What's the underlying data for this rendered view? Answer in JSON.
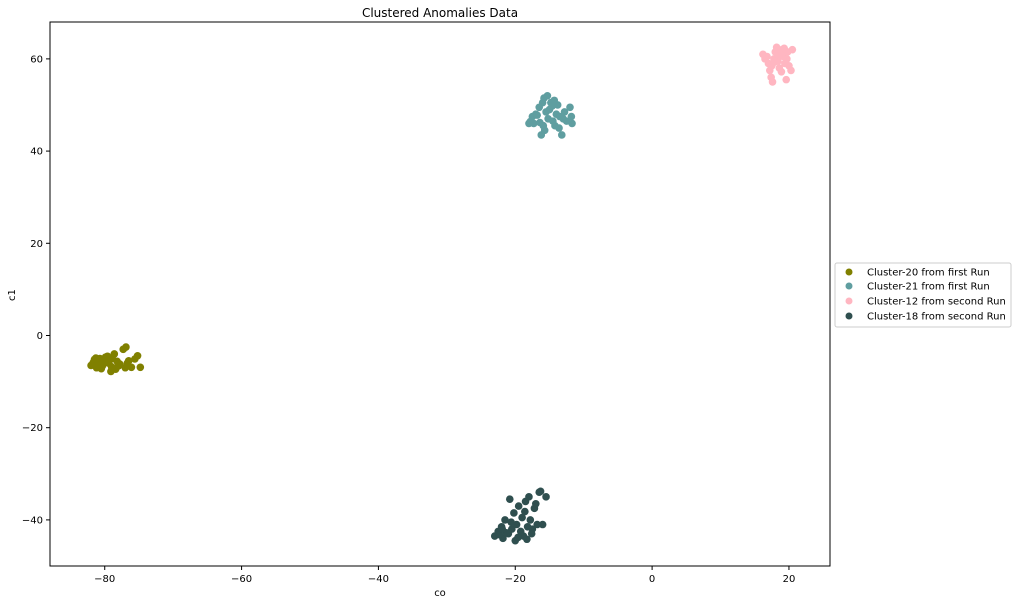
{
  "chart_data": {
    "type": "scatter",
    "title": "Clustered Anomalies Data",
    "xlabel": "co",
    "ylabel": "c1",
    "xlim": [
      -88,
      26
    ],
    "ylim": [
      -50,
      68
    ],
    "xticks": [
      -80,
      -60,
      -40,
      -20,
      0,
      20
    ],
    "yticks": [
      -40,
      -20,
      0,
      20,
      40,
      60
    ],
    "xtick_labels": [
      "−80",
      "−60",
      "−40",
      "−20",
      "0",
      "20"
    ],
    "ytick_labels": [
      "−40",
      "−20",
      "0",
      "20",
      "40",
      "60"
    ],
    "grid": false,
    "legend_position": "outside-right",
    "series": [
      {
        "name": "Cluster-20 from first Run",
        "color": "#808000",
        "points": [
          [
            -81.5,
            -5.2
          ],
          [
            -81.0,
            -6.0
          ],
          [
            -80.7,
            -5.0
          ],
          [
            -80.3,
            -6.5
          ],
          [
            -79.8,
            -5.8
          ],
          [
            -79.3,
            -5.2
          ],
          [
            -79.0,
            -6.8
          ],
          [
            -78.6,
            -4.0
          ],
          [
            -78.2,
            -5.6
          ],
          [
            -77.8,
            -6.2
          ],
          [
            -77.3,
            -3.0
          ],
          [
            -76.9,
            -2.5
          ],
          [
            -76.5,
            -5.5
          ],
          [
            -76.1,
            -6.9
          ],
          [
            -75.6,
            -5.1
          ],
          [
            -75.2,
            -4.4
          ],
          [
            -74.8,
            -6.9
          ],
          [
            -82.0,
            -6.5
          ],
          [
            -81.2,
            -7.0
          ],
          [
            -80.1,
            -5.4
          ],
          [
            -79.6,
            -4.5
          ],
          [
            -79.1,
            -7.8
          ],
          [
            -78.9,
            -5.0
          ],
          [
            -80.9,
            -6.3
          ],
          [
            -81.7,
            -5.9
          ],
          [
            -80.5,
            -7.2
          ],
          [
            -79.4,
            -6.0
          ],
          [
            -78.0,
            -6.6
          ],
          [
            -77.0,
            -7.0
          ],
          [
            -76.7,
            -6.0
          ],
          [
            -79.9,
            -4.7
          ],
          [
            -80.6,
            -6.8
          ],
          [
            -81.3,
            -4.9
          ],
          [
            -78.4,
            -7.3
          ]
        ]
      },
      {
        "name": "Cluster-21 from first Run",
        "color": "#5f9ea0",
        "points": [
          [
            -18.0,
            46.0
          ],
          [
            -17.5,
            47.5
          ],
          [
            -17.0,
            48.0
          ],
          [
            -16.5,
            49.5
          ],
          [
            -16.0,
            50.5
          ],
          [
            -15.8,
            51.5
          ],
          [
            -15.5,
            48.5
          ],
          [
            -15.2,
            47.0
          ],
          [
            -15.0,
            49.0
          ],
          [
            -14.8,
            50.5
          ],
          [
            -14.5,
            46.5
          ],
          [
            -14.2,
            45.5
          ],
          [
            -14.0,
            48.0
          ],
          [
            -13.8,
            50.0
          ],
          [
            -13.5,
            47.5
          ],
          [
            -13.2,
            43.5
          ],
          [
            -13.0,
            47.0
          ],
          [
            -12.8,
            48.5
          ],
          [
            -12.5,
            46.5
          ],
          [
            -12.0,
            49.5
          ],
          [
            -11.8,
            47.5
          ],
          [
            -11.7,
            46.0
          ],
          [
            -16.2,
            43.5
          ],
          [
            -15.7,
            44.5
          ],
          [
            -17.3,
            46.0
          ],
          [
            -16.8,
            47.8
          ],
          [
            -14.6,
            49.8
          ],
          [
            -15.3,
            52.0
          ],
          [
            -16.4,
            46.2
          ],
          [
            -13.6,
            45.0
          ],
          [
            -14.3,
            51.0
          ],
          [
            -15.9,
            45.5
          ],
          [
            -17.8,
            46.4
          ]
        ]
      },
      {
        "name": "Cluster-12 from second Run",
        "color": "#ffb6c1",
        "points": [
          [
            16.2,
            61.0
          ],
          [
            16.8,
            60.5
          ],
          [
            17.0,
            59.0
          ],
          [
            17.2,
            57.5
          ],
          [
            17.4,
            56.0
          ],
          [
            17.6,
            55.0
          ],
          [
            17.8,
            60.0
          ],
          [
            18.0,
            61.5
          ],
          [
            18.2,
            62.5
          ],
          [
            18.4,
            59.5
          ],
          [
            18.6,
            58.0
          ],
          [
            18.8,
            61.0
          ],
          [
            19.0,
            62.0
          ],
          [
            19.2,
            60.5
          ],
          [
            19.4,
            59.0
          ],
          [
            19.6,
            55.5
          ],
          [
            19.8,
            61.5
          ],
          [
            20.0,
            58.5
          ],
          [
            20.3,
            57.5
          ],
          [
            20.5,
            62.0
          ],
          [
            16.5,
            60.0
          ],
          [
            17.5,
            58.5
          ],
          [
            18.5,
            60.8
          ],
          [
            19.3,
            62.3
          ],
          [
            17.9,
            59.3
          ],
          [
            18.9,
            57.2
          ],
          [
            19.7,
            60.0
          ]
        ]
      },
      {
        "name": "Cluster-18 from second Run",
        "color": "#2f4f4f",
        "points": [
          [
            -23.0,
            -43.5
          ],
          [
            -22.5,
            -42.5
          ],
          [
            -22.0,
            -41.5
          ],
          [
            -21.8,
            -44.0
          ],
          [
            -21.5,
            -40.0
          ],
          [
            -21.0,
            -43.0
          ],
          [
            -20.5,
            -42.0
          ],
          [
            -20.2,
            -38.5
          ],
          [
            -20.0,
            -44.5
          ],
          [
            -19.8,
            -41.0
          ],
          [
            -19.5,
            -37.0
          ],
          [
            -19.2,
            -42.5
          ],
          [
            -19.0,
            -39.5
          ],
          [
            -18.8,
            -43.5
          ],
          [
            -18.5,
            -36.0
          ],
          [
            -18.2,
            -41.5
          ],
          [
            -18.0,
            -35.0
          ],
          [
            -17.8,
            -40.0
          ],
          [
            -17.5,
            -42.0
          ],
          [
            -17.2,
            -37.5
          ],
          [
            -17.0,
            -36.5
          ],
          [
            -16.8,
            -41.0
          ],
          [
            -16.5,
            -34.0
          ],
          [
            -16.3,
            -33.8
          ],
          [
            -16.0,
            -41.0
          ],
          [
            -15.5,
            -35.0
          ],
          [
            -20.8,
            -35.5
          ],
          [
            -21.3,
            -42.8
          ],
          [
            -22.3,
            -43.2
          ],
          [
            -19.6,
            -43.8
          ],
          [
            -18.6,
            -38.2
          ],
          [
            -17.6,
            -43.0
          ],
          [
            -20.6,
            -40.5
          ],
          [
            -21.9,
            -42.0
          ],
          [
            -18.3,
            -44.2
          ]
        ]
      }
    ]
  }
}
